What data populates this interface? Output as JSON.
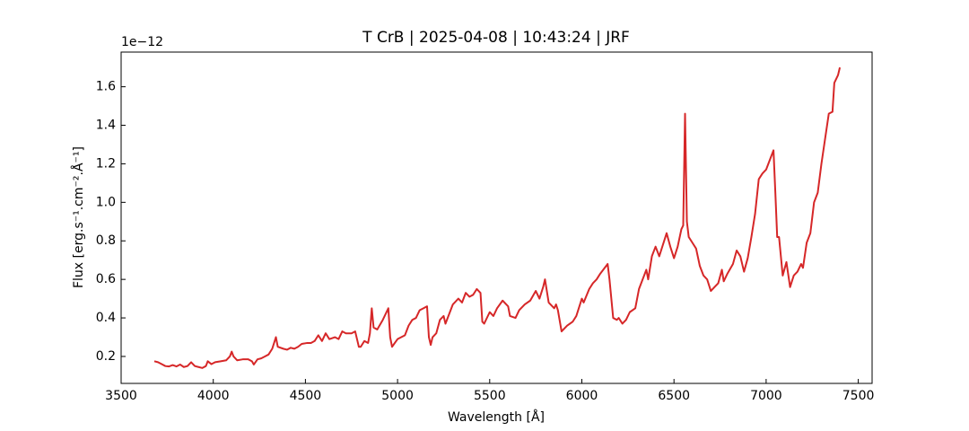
{
  "chart_data": {
    "type": "line",
    "title": "T CrB | 2025-04-08 | 10:43:24 | JRF",
    "x_label": "Wavelength [Å]",
    "y_label": "Flux [erg.s⁻¹.cm⁻².Å⁻¹]",
    "y_offset_text": "1e−12",
    "xlim": [
      3500,
      7575
    ],
    "ylim": [
      0.06,
      1.78
    ],
    "xticks": [
      3500,
      4000,
      4500,
      5000,
      5500,
      6000,
      6500,
      7000,
      7500
    ],
    "yticks": [
      0.2,
      0.4,
      0.6,
      0.8,
      {
        "value": 1.0,
        "label": "1.0"
      },
      1.2,
      1.4,
      1.6
    ],
    "tick_direction": "in",
    "x": [
      3680,
      3700,
      3720,
      3740,
      3760,
      3780,
      3800,
      3820,
      3840,
      3860,
      3880,
      3900,
      3920,
      3940,
      3960,
      3970,
      3990,
      4010,
      4040,
      4070,
      4090,
      4100,
      4110,
      4130,
      4160,
      4190,
      4210,
      4220,
      4240,
      4260,
      4280,
      4300,
      4320,
      4340,
      4350,
      4380,
      4400,
      4420,
      4440,
      4460,
      4480,
      4510,
      4530,
      4550,
      4570,
      4590,
      4610,
      4630,
      4660,
      4680,
      4700,
      4720,
      4750,
      4770,
      4790,
      4800,
      4820,
      4840,
      4850,
      4860,
      4870,
      4890,
      4920,
      4950,
      4960,
      4970,
      5000,
      5040,
      5060,
      5080,
      5100,
      5120,
      5140,
      5160,
      5170,
      5180,
      5190,
      5210,
      5230,
      5250,
      5260,
      5280,
      5300,
      5330,
      5350,
      5370,
      5390,
      5410,
      5430,
      5450,
      5460,
      5470,
      5500,
      5520,
      5540,
      5570,
      5600,
      5610,
      5640,
      5660,
      5690,
      5720,
      5750,
      5770,
      5790,
      5800,
      5820,
      5850,
      5860,
      5870,
      5890,
      5920,
      5950,
      5970,
      6000,
      6010,
      6040,
      6060,
      6080,
      6100,
      6140,
      6150,
      6170,
      6190,
      6200,
      6220,
      6240,
      6260,
      6290,
      6310,
      6330,
      6350,
      6360,
      6380,
      6400,
      6420,
      6440,
      6460,
      6480,
      6500,
      6520,
      6540,
      6550,
      6560,
      6570,
      6580,
      6600,
      6620,
      6640,
      6660,
      6680,
      6700,
      6720,
      6740,
      6760,
      6770,
      6790,
      6820,
      6840,
      6860,
      6880,
      6900,
      6920,
      6940,
      6960,
      6980,
      7000,
      7020,
      7040,
      7050,
      7060,
      7070,
      7090,
      7110,
      7130,
      7150,
      7170,
      7190,
      7200,
      7220,
      7240,
      7260,
      7280,
      7300,
      7320,
      7340,
      7360,
      7370,
      7390,
      7400
    ],
    "series": [
      {
        "color": "#d62728",
        "values": [
          0.175,
          0.17,
          0.16,
          0.15,
          0.148,
          0.155,
          0.148,
          0.158,
          0.145,
          0.15,
          0.17,
          0.15,
          0.145,
          0.14,
          0.15,
          0.175,
          0.16,
          0.17,
          0.175,
          0.18,
          0.2,
          0.225,
          0.2,
          0.18,
          0.185,
          0.185,
          0.175,
          0.158,
          0.185,
          0.19,
          0.2,
          0.21,
          0.24,
          0.3,
          0.25,
          0.24,
          0.235,
          0.245,
          0.24,
          0.25,
          0.265,
          0.27,
          0.27,
          0.28,
          0.31,
          0.28,
          0.32,
          0.29,
          0.3,
          0.29,
          0.33,
          0.32,
          0.32,
          0.33,
          0.25,
          0.25,
          0.28,
          0.27,
          0.32,
          0.45,
          0.35,
          0.34,
          0.39,
          0.45,
          0.3,
          0.25,
          0.29,
          0.31,
          0.36,
          0.39,
          0.4,
          0.44,
          0.45,
          0.46,
          0.3,
          0.26,
          0.3,
          0.32,
          0.39,
          0.41,
          0.37,
          0.42,
          0.47,
          0.5,
          0.48,
          0.53,
          0.51,
          0.52,
          0.55,
          0.53,
          0.38,
          0.37,
          0.43,
          0.41,
          0.45,
          0.49,
          0.46,
          0.41,
          0.4,
          0.44,
          0.47,
          0.49,
          0.54,
          0.5,
          0.56,
          0.6,
          0.48,
          0.45,
          0.47,
          0.44,
          0.33,
          0.36,
          0.38,
          0.41,
          0.5,
          0.48,
          0.55,
          0.58,
          0.6,
          0.63,
          0.68,
          0.6,
          0.4,
          0.39,
          0.4,
          0.37,
          0.39,
          0.43,
          0.45,
          0.55,
          0.6,
          0.65,
          0.6,
          0.72,
          0.77,
          0.72,
          0.78,
          0.84,
          0.77,
          0.71,
          0.77,
          0.86,
          0.88,
          1.46,
          0.9,
          0.82,
          0.79,
          0.76,
          0.67,
          0.62,
          0.6,
          0.54,
          0.56,
          0.58,
          0.65,
          0.59,
          0.63,
          0.68,
          0.75,
          0.72,
          0.64,
          0.71,
          0.82,
          0.94,
          1.12,
          1.15,
          1.17,
          1.22,
          1.27,
          1.05,
          0.82,
          0.82,
          0.62,
          0.69,
          0.56,
          0.62,
          0.64,
          0.68,
          0.66,
          0.79,
          0.84,
          1.0,
          1.05,
          1.2,
          1.33,
          1.46,
          1.47,
          1.62,
          1.66,
          1.7
        ]
      }
    ]
  }
}
